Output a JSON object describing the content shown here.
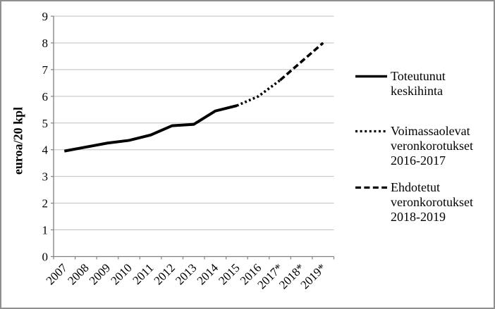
{
  "figure": {
    "background": "#ffffff",
    "border_color": "#8f8f8f"
  },
  "colors": {
    "line": "#000000",
    "grid": "#bfbfbf",
    "axis": "#808080",
    "text": "#000000"
  },
  "chart_data": {
    "type": "line",
    "title": "",
    "xlabel": "",
    "ylabel": "euroa/20 kpl",
    "ylim": [
      0,
      9
    ],
    "ytick_step": 1,
    "grid": "horizontal",
    "legend_position": "right",
    "categories": [
      "2007",
      "2008",
      "2009",
      "2010",
      "2011",
      "2012",
      "2013",
      "2014",
      "2015",
      "2016",
      "2017*",
      "2018*",
      "2019*"
    ],
    "series": [
      {
        "name": "Toteutunut keskihinta",
        "style": "solid",
        "start_index": 0,
        "values": [
          3.95,
          4.1,
          4.25,
          4.35,
          4.55,
          4.9,
          4.95,
          5.45,
          5.65
        ]
      },
      {
        "name": "Voimassaolevat veronkorotukset 2016-2017",
        "style": "dotted",
        "start_index": 8,
        "values": [
          5.65,
          6.0,
          6.6
        ]
      },
      {
        "name": "Ehdotetut veronkorotukset 2018-2019",
        "style": "dashed",
        "start_index": 10,
        "values": [
          6.6,
          7.3,
          8.0
        ]
      }
    ]
  },
  "legend": {
    "entries": [
      {
        "label": "Toteutunut\nkeskihinta",
        "style": "solid"
      },
      {
        "label": "Voimassaolevat\nveronkorotukset\n2016-2017",
        "style": "dotted"
      },
      {
        "label": "Ehdotetut\nveronkorotukset\n2018-2019",
        "style": "dashed"
      }
    ]
  }
}
